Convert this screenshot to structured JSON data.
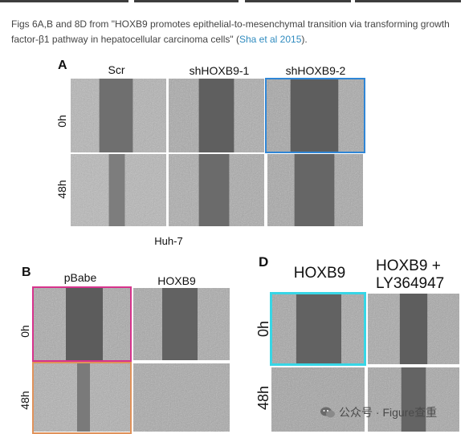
{
  "caption": {
    "text_before": "Figs 6A,B and 8D from \"HOXB9 promotes epithelial-to-mesenchymal transition via transforming growth factor-β1 pathway in hepatocellular carcinoma cells\" (",
    "link_text": "Sha et al 2015",
    "text_after": ")."
  },
  "figure_A": {
    "letter": "A",
    "columns": [
      "Scr",
      "shHOXB9-1",
      "shHOXB9-2"
    ],
    "rows": [
      "0h",
      "48h"
    ],
    "cell_line": "Huh-7",
    "highlight_color": "#2f86d6"
  },
  "figure_B": {
    "letter": "B",
    "columns": [
      "pBabe",
      "HOXB9"
    ],
    "rows": [
      "0h",
      "48h"
    ],
    "highlight_colors": [
      "#d6338c",
      "#e0925a"
    ]
  },
  "figure_D": {
    "letter": "D",
    "columns": [
      "HOXB9",
      "HOXB9 +\nLY364947"
    ],
    "rows": [
      "0h",
      "48h"
    ],
    "highlight_color": "#37d6e6"
  },
  "watermark": {
    "text": "公众号 · Figure查重",
    "icon": "wechat-icon"
  }
}
